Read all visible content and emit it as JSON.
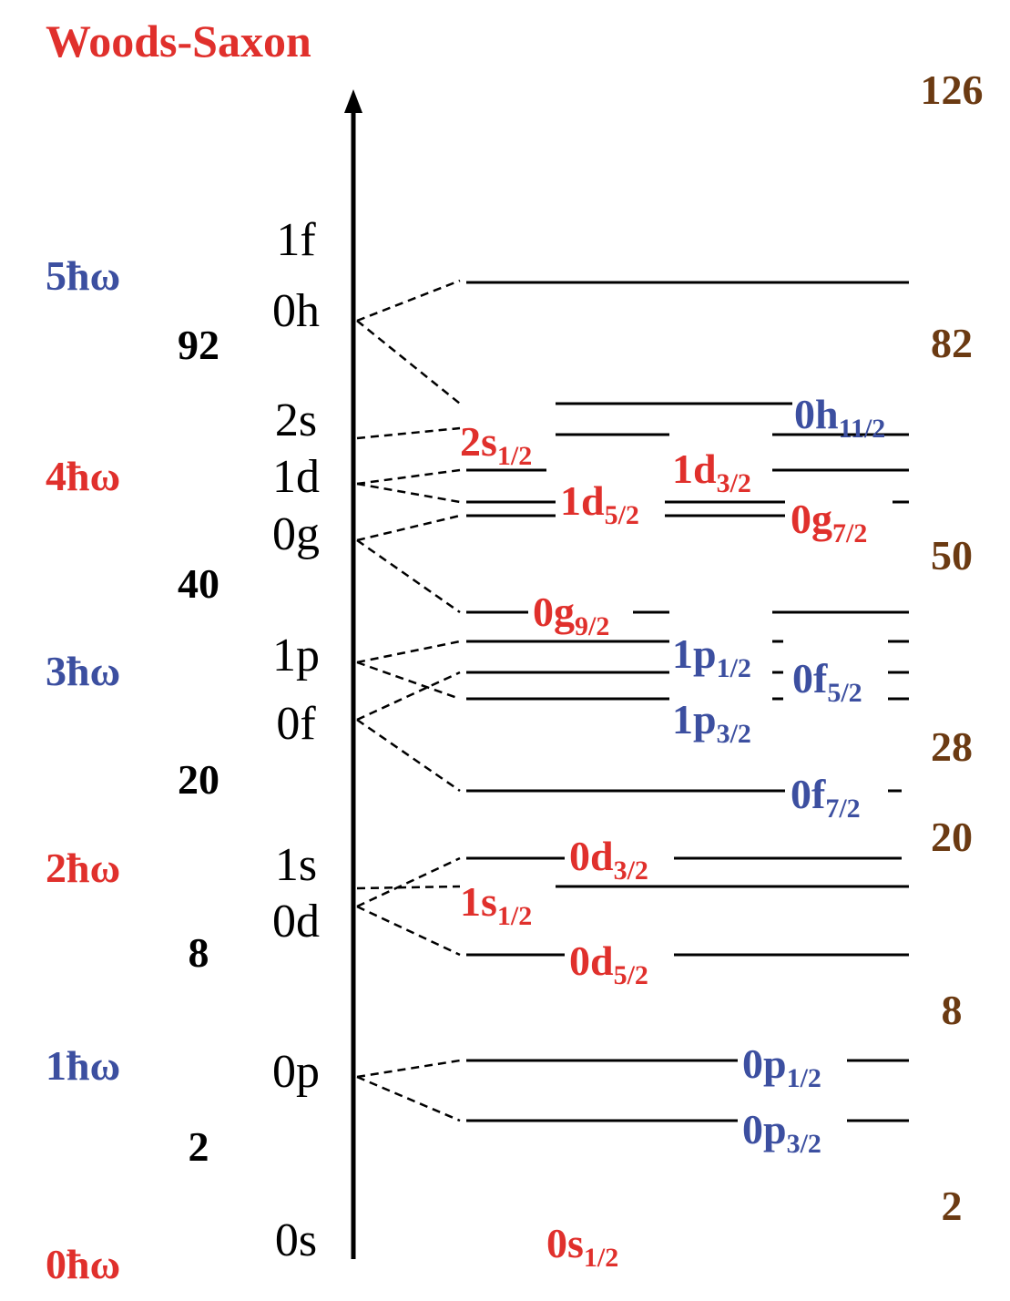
{
  "title": "Woods-Saxon",
  "shells": [
    "5ħω",
    "4ħω",
    "3ħω",
    "2ħω",
    "1ħω",
    "0ħω"
  ],
  "left_magic": [
    92,
    40,
    20,
    8,
    2
  ],
  "orbitals": [
    "1f",
    "0h",
    "2s",
    "1d",
    "0g",
    "1p",
    "0f",
    "1s",
    "0d",
    "0p",
    "0s"
  ],
  "levels": [
    {
      "main": "0h",
      "sub": "11/2"
    },
    {
      "main": "2s",
      "sub": "1/2"
    },
    {
      "main": "1d",
      "sub": "3/2"
    },
    {
      "main": "1d",
      "sub": "5/2"
    },
    {
      "main": "0g",
      "sub": "7/2"
    },
    {
      "main": "0g",
      "sub": "9/2"
    },
    {
      "main": "1p",
      "sub": "1/2"
    },
    {
      "main": "0f",
      "sub": "5/2"
    },
    {
      "main": "1p",
      "sub": "3/2"
    },
    {
      "main": "0f",
      "sub": "7/2"
    },
    {
      "main": "0d",
      "sub": "3/2"
    },
    {
      "main": "1s",
      "sub": "1/2"
    },
    {
      "main": "0d",
      "sub": "5/2"
    },
    {
      "main": "0p",
      "sub": "1/2"
    },
    {
      "main": "0p",
      "sub": "3/2"
    },
    {
      "main": "0s",
      "sub": "1/2"
    }
  ],
  "right_magic": [
    126,
    82,
    50,
    28,
    20,
    8,
    2
  ]
}
